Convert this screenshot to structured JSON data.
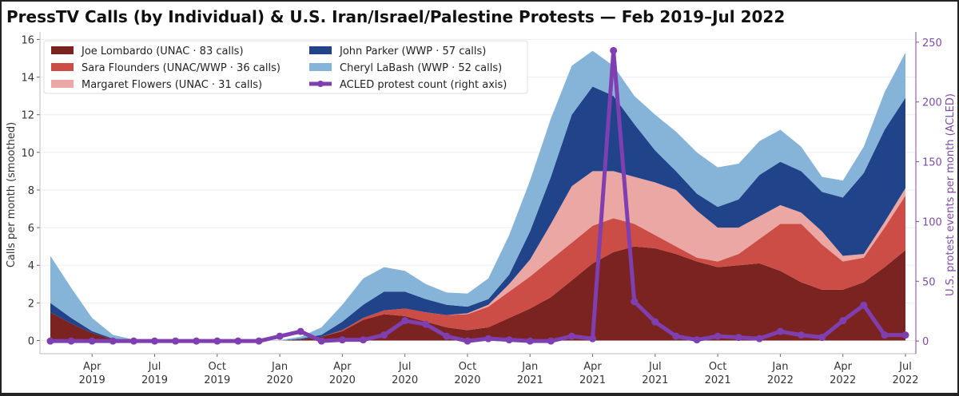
{
  "chart_data": {
    "type": "area",
    "title": "PressTV Calls (by Individual) & U.S. Iran/Israel/Palestine Protests — Feb 2019–Jul 2022",
    "ylabel": "Calls per month (smoothed)",
    "ylabel_right": "U.S. protest events per month (ACLED)",
    "ylim": [
      -0.7,
      16.4
    ],
    "ylim_right": [
      -10.6,
      258.6
    ],
    "yticks": [
      0,
      2,
      4,
      6,
      8,
      10,
      12,
      14,
      16
    ],
    "yticks_right": [
      0,
      50,
      100,
      150,
      200,
      250
    ],
    "grid": true,
    "legend_placement": "top-left",
    "x_months": [
      "2019-02",
      "2019-03",
      "2019-04",
      "2019-05",
      "2019-06",
      "2019-07",
      "2019-08",
      "2019-09",
      "2019-10",
      "2019-11",
      "2019-12",
      "2020-01",
      "2020-02",
      "2020-03",
      "2020-04",
      "2020-05",
      "2020-06",
      "2020-07",
      "2020-08",
      "2020-09",
      "2020-10",
      "2020-11",
      "2020-12",
      "2021-01",
      "2021-02",
      "2021-03",
      "2021-04",
      "2021-05",
      "2021-06",
      "2021-07",
      "2021-08",
      "2021-09",
      "2021-10",
      "2021-11",
      "2021-12",
      "2022-01",
      "2022-02",
      "2022-03",
      "2022-04",
      "2022-05",
      "2022-06",
      "2022-07"
    ],
    "xticks": [
      {
        "index": 2,
        "month": "Apr",
        "year": "2019"
      },
      {
        "index": 5,
        "month": "Jul",
        "year": "2019"
      },
      {
        "index": 8,
        "month": "Oct",
        "year": "2019"
      },
      {
        "index": 11,
        "month": "Jan",
        "year": "2020"
      },
      {
        "index": 14,
        "month": "Apr",
        "year": "2020"
      },
      {
        "index": 17,
        "month": "Jul",
        "year": "2020"
      },
      {
        "index": 20,
        "month": "Oct",
        "year": "2020"
      },
      {
        "index": 23,
        "month": "Jan",
        "year": "2021"
      },
      {
        "index": 26,
        "month": "Apr",
        "year": "2021"
      },
      {
        "index": 29,
        "month": "Jul",
        "year": "2021"
      },
      {
        "index": 32,
        "month": "Oct",
        "year": "2021"
      },
      {
        "index": 35,
        "month": "Jan",
        "year": "2022"
      },
      {
        "index": 38,
        "month": "Apr",
        "year": "2022"
      },
      {
        "index": 41,
        "month": "Jul",
        "year": "2022"
      }
    ],
    "series": [
      {
        "name": "Joe Lombardo  (UNAC · 83 calls)",
        "color": "#7b2320",
        "values": [
          1.5,
          0.9,
          0.4,
          0.05,
          0,
          0,
          0,
          0,
          0,
          0,
          0,
          0,
          0.05,
          0.2,
          0.5,
          1.1,
          1.4,
          1.3,
          1.0,
          0.7,
          0.55,
          0.7,
          1.2,
          1.7,
          2.3,
          3.2,
          4.1,
          4.7,
          5.0,
          4.9,
          4.6,
          4.2,
          3.9,
          4.0,
          4.1,
          3.7,
          3.1,
          2.7,
          2.7,
          3.1,
          3.9,
          4.8
        ]
      },
      {
        "name": "Sara Flounders  (UNAC/WWP · 36 calls)",
        "color": "#cc4d45",
        "values": [
          0,
          0,
          0,
          0,
          0,
          0,
          0,
          0,
          0,
          0,
          0,
          0,
          0,
          0,
          0.05,
          0.1,
          0.2,
          0.4,
          0.5,
          0.65,
          0.85,
          1.1,
          1.4,
          1.7,
          2.0,
          2.0,
          2.0,
          1.8,
          1.2,
          0.7,
          0.4,
          0.2,
          0.3,
          0.6,
          1.3,
          2.5,
          3.1,
          2.4,
          1.5,
          1.3,
          2.1,
          2.9
        ]
      },
      {
        "name": "Margaret Flowers  (UNAC · 31 calls)",
        "color": "#eaa7a3",
        "values": [
          0,
          0,
          0,
          0,
          0,
          0,
          0,
          0,
          0,
          0,
          0,
          0,
          0,
          0,
          0,
          0,
          0,
          0,
          0,
          0,
          0.05,
          0.1,
          0.4,
          0.9,
          1.9,
          3.0,
          2.9,
          2.5,
          2.5,
          2.8,
          3.0,
          2.5,
          1.8,
          1.4,
          1.2,
          1.0,
          0.6,
          0.7,
          0.3,
          0.2,
          0.3,
          0.4
        ]
      },
      {
        "name": "John Parker  (WWP · 57 calls)",
        "color": "#21438a",
        "values": [
          0.5,
          0.3,
          0.1,
          0.05,
          0,
          0,
          0,
          0,
          0,
          0,
          0,
          0,
          0.05,
          0.1,
          0.45,
          0.7,
          1.0,
          0.9,
          0.7,
          0.55,
          0.35,
          0.3,
          0.5,
          1.5,
          2.5,
          3.8,
          4.5,
          4.0,
          2.8,
          1.7,
          1.0,
          0.9,
          1.1,
          1.5,
          2.2,
          2.3,
          2.2,
          2.1,
          3.1,
          4.3,
          4.9,
          4.8
        ]
      },
      {
        "name": "Cheryl LaBash  (WWP · 52 calls)",
        "color": "#86b3d8",
        "values": [
          2.5,
          1.6,
          0.7,
          0.2,
          0.05,
          0,
          0,
          0,
          0,
          0,
          0,
          0.02,
          0.1,
          0.4,
          0.9,
          1.4,
          1.3,
          1.1,
          0.8,
          0.65,
          0.7,
          1.1,
          2.1,
          2.7,
          3.1,
          2.6,
          1.9,
          1.6,
          1.5,
          1.9,
          2.1,
          2.2,
          2.1,
          1.9,
          1.8,
          1.7,
          1.3,
          0.8,
          0.9,
          1.4,
          2.0,
          2.4
        ]
      }
    ],
    "line_series": {
      "name": "ACLED protest count (right axis)",
      "color": "#7f3fb0",
      "axis": "right",
      "values": [
        0,
        0,
        0,
        0,
        0,
        0,
        0,
        0,
        0,
        0,
        0,
        4,
        8,
        0,
        1,
        1,
        5,
        17,
        14,
        4,
        0,
        2,
        1,
        0,
        0,
        4,
        2,
        243,
        33,
        16,
        4,
        1,
        4,
        3,
        2,
        8,
        5,
        3,
        17,
        30,
        5,
        5
      ]
    }
  }
}
